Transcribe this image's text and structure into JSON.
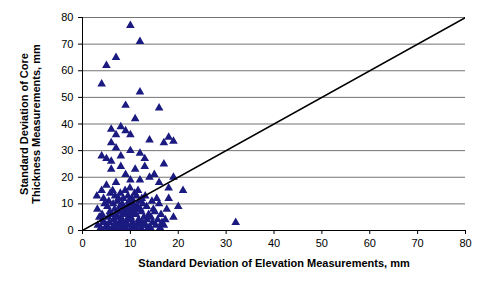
{
  "chart_data": {
    "type": "scatter",
    "xlabel": "Standard Deviation of Elevation Measurements, mm",
    "ylabel": "Standard Deviation of Core\nThickness Measurements, mm",
    "xlim": [
      0,
      80
    ],
    "xticks": [
      0,
      10,
      20,
      30,
      40,
      50,
      60,
      70,
      80
    ],
    "ylim": [
      0,
      80
    ],
    "yticks": [
      0,
      10,
      20,
      30,
      40,
      50,
      60,
      70,
      80
    ],
    "grid": true,
    "series": [
      {
        "type": "scatter",
        "color": "#1a1a80",
        "marker": "triangle",
        "x": [
          10,
          12,
          7,
          5,
          4,
          12,
          9,
          16,
          11,
          8,
          6,
          9,
          7,
          10,
          18,
          19,
          17,
          14,
          6,
          7,
          10,
          12,
          4,
          5,
          6,
          13,
          8,
          17,
          13,
          8,
          6,
          11,
          9,
          14,
          19,
          21,
          32,
          10,
          12,
          18,
          16,
          15,
          7,
          5,
          3,
          4,
          20,
          19,
          18,
          17,
          16,
          3.2,
          3.5,
          3.1,
          3.8,
          4.3,
          4.1,
          4.6,
          4.4,
          4.8,
          4.2,
          5.1,
          5.4,
          5.7,
          5.2,
          5.5,
          5.8,
          5.3,
          5.6,
          6.2,
          6.5,
          6.1,
          6.7,
          6.4,
          6.8,
          6.3,
          6.6,
          6.9,
          7.1,
          7.4,
          7.2,
          7.6,
          7.8,
          7.3,
          7.5,
          7.9,
          7.7,
          7.0,
          8.1,
          8.4,
          8.2,
          8.6,
          8.8,
          8.3,
          8.5,
          8.9,
          8.7,
          8.0,
          8.45,
          8.25,
          9.1,
          9.3,
          9.6,
          9.2,
          9.8,
          9.4,
          9.7,
          9.5,
          9.9,
          9.15,
          9.55,
          9.35,
          9.75,
          10.2,
          10.5,
          10.1,
          10.8,
          10.4,
          10.6,
          10.3,
          10.9,
          10.7,
          10.15,
          10.55,
          10.85,
          11.1,
          11.4,
          11.7,
          11.2,
          11.5,
          11.8,
          11.3,
          11.6,
          11.9,
          11.25,
          12.2,
          12.5,
          12.8,
          12.3,
          12.6,
          12.4,
          12.9,
          12.1,
          13.2,
          13.5,
          13.8,
          13.4,
          13.1,
          13.7,
          14.2,
          14.6,
          14.3,
          14.8,
          14.5,
          15.3,
          15.7,
          15.1,
          15.5,
          16.2,
          16.6,
          16.4,
          17.3,
          17.6
        ],
        "values": [
          77,
          71,
          65,
          62,
          55,
          52,
          47,
          46,
          42,
          39,
          38,
          37.5,
          36,
          36,
          35,
          33.5,
          33,
          34,
          33,
          31,
          30,
          29,
          28,
          27,
          26,
          27,
          28,
          25,
          24,
          24,
          23,
          23,
          21,
          20,
          20,
          15,
          3,
          19,
          19,
          16,
          18,
          21,
          18,
          17,
          13,
          15,
          9,
          5,
          12,
          2,
          10,
          2,
          5,
          8,
          1,
          3,
          6,
          10,
          12,
          1.2,
          4,
          2,
          5,
          7,
          9,
          11,
          14,
          0.5,
          3,
          1,
          4,
          6,
          8,
          10,
          13,
          15,
          2,
          3,
          0.5,
          2,
          5,
          7,
          9,
          11,
          12,
          14,
          3,
          6,
          1,
          3,
          4,
          6,
          8,
          10,
          12,
          15,
          2,
          5,
          7,
          9,
          0.5,
          2,
          4,
          6,
          8,
          9,
          11,
          13,
          16,
          3,
          5,
          7,
          10,
          1,
          3,
          5,
          6,
          8,
          10,
          12,
          14,
          2,
          4,
          7,
          9,
          0.5,
          2,
          4,
          6,
          9,
          11,
          13,
          15,
          3,
          8,
          1,
          3,
          5,
          7,
          10,
          12,
          2,
          8,
          2,
          4,
          6,
          9,
          13,
          1,
          1,
          3,
          5,
          8,
          11,
          2,
          4,
          7,
          12,
          1,
          3,
          6,
          4,
          8
        ]
      },
      {
        "type": "line",
        "color": "#000000",
        "line_style": "solid",
        "x": [
          0,
          80
        ],
        "values": [
          0,
          80
        ]
      }
    ]
  }
}
